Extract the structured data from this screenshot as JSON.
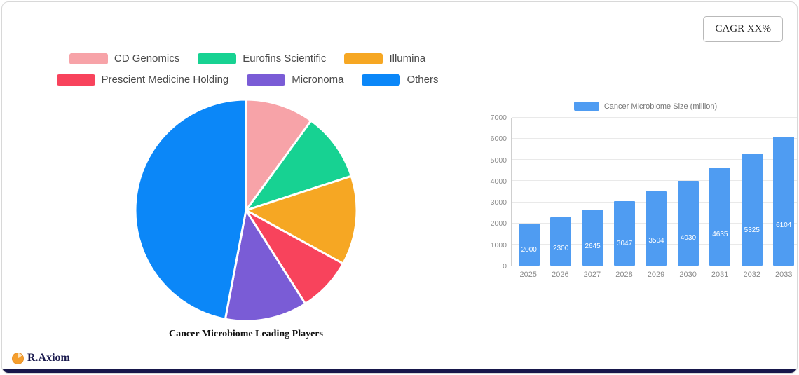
{
  "header": {
    "cagr_label": "CAGR XX%"
  },
  "footer": {
    "brand": "R.Axiom"
  },
  "chart_data": [
    {
      "type": "pie",
      "title": "Cancer Microbiome Leading Players",
      "labels": [
        "CD Genomics",
        "Eurofins Scientific",
        "Illumina",
        "Prescient Medicine Holding",
        "Micronoma",
        "Others"
      ],
      "values": [
        10,
        10,
        13,
        8,
        12,
        47
      ],
      "colors": [
        "#F7A3A8",
        "#17D292",
        "#F6A723",
        "#F8435C",
        "#7A5CD6",
        "#0B87F8"
      ],
      "legend_position": "top",
      "start_angle_deg": 0,
      "direction": "clockwise"
    },
    {
      "type": "bar",
      "series_name": "Cancer Microbiome Size (million)",
      "categories": [
        "2025",
        "2026",
        "2027",
        "2028",
        "2029",
        "2030",
        "2031",
        "2032",
        "2033"
      ],
      "values": [
        2000,
        2300,
        2645,
        3047,
        3504,
        4030,
        4635,
        5325,
        6104
      ],
      "ylim": [
        0,
        7000
      ],
      "ytick_step": 1000,
      "bar_color": "#4F9CF2",
      "grid": true,
      "legend_position": "top"
    }
  ]
}
